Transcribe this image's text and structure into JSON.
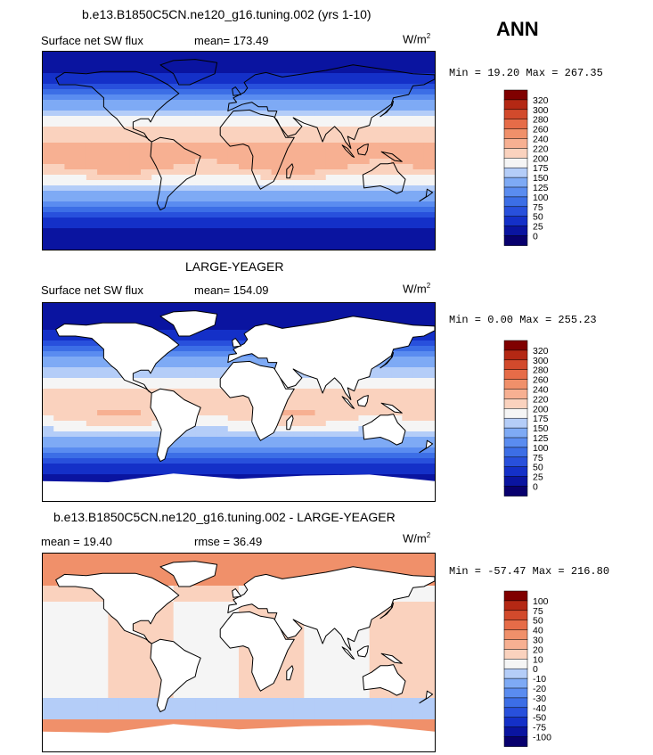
{
  "season": "ANN",
  "chart_data": [
    {
      "type": "heatmap",
      "title": "b.e13.B1850C5CN.ne120_g16.tuning.002 (yrs 1-10)",
      "field_label": "Surface net SW flux",
      "stat_text": "mean= 173.49",
      "units_base": "W/m",
      "units_exp": "2",
      "minmax_text": "Min =  19.20 Max = 267.35",
      "min": 19.2,
      "max": 267.35,
      "mean": 173.49,
      "land_masked": false,
      "colorbar": {
        "levels": [
          "0",
          "25",
          "50",
          "75",
          "100",
          "125",
          "150",
          "175",
          "200",
          "220",
          "240",
          "260",
          "280",
          "300",
          "320"
        ],
        "colors": [
          "#08006e",
          "#0a14a0",
          "#1430c8",
          "#2850dc",
          "#3c6ee6",
          "#5a8cf0",
          "#7eaaf5",
          "#b4cdf8",
          "#f5f5f5",
          "#fad2be",
          "#f7b092",
          "#f0906a",
          "#e66c48",
          "#d24a2c",
          "#b42814",
          "#800000"
        ]
      }
    },
    {
      "type": "heatmap",
      "title": "LARGE-YEAGER",
      "field_label": "Surface net SW flux",
      "stat_text": "mean= 154.09",
      "units_base": "W/m",
      "units_exp": "2",
      "minmax_text": "Min =   0.00 Max = 255.23",
      "min": 0.0,
      "max": 255.23,
      "mean": 154.09,
      "land_masked": true,
      "colorbar": {
        "levels": [
          "0",
          "25",
          "50",
          "75",
          "100",
          "125",
          "150",
          "175",
          "200",
          "220",
          "240",
          "260",
          "280",
          "300",
          "320"
        ],
        "colors": [
          "#08006e",
          "#0a14a0",
          "#1430c8",
          "#2850dc",
          "#3c6ee6",
          "#5a8cf0",
          "#7eaaf5",
          "#b4cdf8",
          "#f5f5f5",
          "#fad2be",
          "#f7b092",
          "#f0906a",
          "#e66c48",
          "#d24a2c",
          "#b42814",
          "#800000"
        ]
      }
    },
    {
      "type": "heatmap",
      "title": "b.e13.B1850C5CN.ne120_g16.tuning.002 - LARGE-YEAGER",
      "field_label": "mean =  19.40",
      "stat_text": "rmse =  36.49",
      "units_base": "W/m",
      "units_exp": "2",
      "minmax_text": "Min = -57.47 Max = 216.80",
      "min": -57.47,
      "max": 216.8,
      "mean": 19.4,
      "rmse": 36.49,
      "land_masked": true,
      "colorbar": {
        "levels": [
          "-100",
          "-75",
          "-50",
          "-40",
          "-30",
          "-20",
          "-10",
          "0",
          "10",
          "20",
          "30",
          "40",
          "50",
          "75",
          "100"
        ],
        "colors": [
          "#08006e",
          "#0a14a0",
          "#1430c8",
          "#2850dc",
          "#3c6ee6",
          "#5a8cf0",
          "#7eaaf5",
          "#b4cdf8",
          "#f5f5f5",
          "#fad2be",
          "#f7b092",
          "#f0906a",
          "#e66c48",
          "#d24a2c",
          "#b42814",
          "#800000"
        ]
      }
    }
  ]
}
